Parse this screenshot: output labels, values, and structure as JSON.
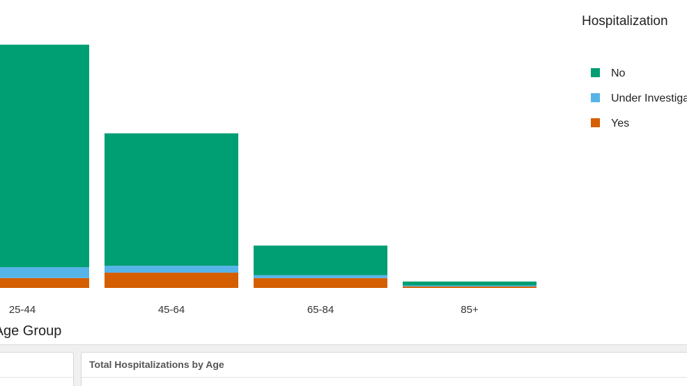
{
  "chart_data": {
    "type": "bar",
    "stacked": true,
    "categories": [
      "25-44",
      "45-64",
      "65-84",
      "85+"
    ],
    "series": [
      {
        "name": "Yes",
        "color": "#d55e00",
        "values": [
          2.0,
          3.1,
          2.0,
          0.3
        ]
      },
      {
        "name": "Under Investigation",
        "color": "#56b4e9",
        "values": [
          2.2,
          1.4,
          0.6,
          0.2
        ]
      },
      {
        "name": "No",
        "color": "#009e73",
        "values": [
          45.2,
          26.9,
          6.0,
          0.8
        ]
      }
    ],
    "xlabel": "Age Group",
    "ylabel": "",
    "ylim": [
      0,
      50
    ],
    "grid": false,
    "legend": {
      "title": "Hospitalization",
      "position": "right",
      "order": [
        "No",
        "Under Investigation",
        "Yes"
      ]
    }
  },
  "panels": {
    "right_title": "Total Hospitalizations by Age"
  }
}
